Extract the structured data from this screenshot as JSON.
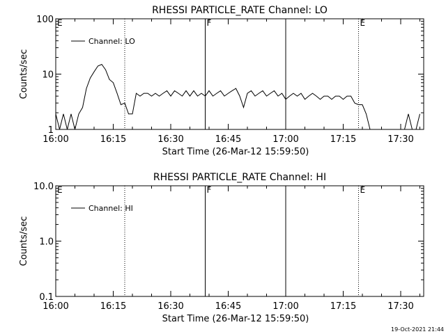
{
  "footer": {
    "timestamp": "19-Oct-2021 21:44"
  },
  "chart_data": [
    {
      "type": "line",
      "title": "RHESSI PARTICLE_RATE Channel: LO",
      "xlabel": "Start Time (26-Mar-12 15:59:50)",
      "ylabel": "Counts/sec",
      "yscale": "log",
      "xlim": [
        "16:00",
        "17:36"
      ],
      "ylim": [
        1,
        100
      ],
      "x_tick_labels": [
        "16:00",
        "16:15",
        "16:30",
        "16:45",
        "17:00",
        "17:15",
        "17:30"
      ],
      "y_tick_labels": [
        "1",
        "10",
        "100"
      ],
      "legend": {
        "label": "Channel: LO",
        "placement": "top-left"
      },
      "markers": [
        {
          "time": "16:00",
          "style": "none",
          "label": "E"
        },
        {
          "time": "16:18",
          "style": "dotted",
          "label": ""
        },
        {
          "time": "16:39",
          "style": "solid",
          "label": "F"
        },
        {
          "time": "17:00",
          "style": "solid",
          "label": ""
        },
        {
          "time": "17:19",
          "style": "dotted",
          "label": "E"
        },
        {
          "time": "17:36",
          "style": "dotted",
          "label": ""
        }
      ],
      "series": [
        {
          "name": "Channel: LO",
          "points": [
            [
              "16:00",
              1.9
            ],
            [
              "16:01",
              1
            ],
            [
              "16:02",
              1.9
            ],
            [
              "16:03",
              1
            ],
            [
              "16:04",
              1.9
            ],
            [
              "16:05",
              1
            ],
            [
              "16:06",
              1.9
            ],
            [
              "16:07",
              2.5
            ],
            [
              "16:08",
              5.5
            ],
            [
              "16:09",
              8.5
            ],
            [
              "16:10",
              11
            ],
            [
              "16:11",
              14
            ],
            [
              "16:12",
              15
            ],
            [
              "16:13",
              12
            ],
            [
              "16:14",
              8
            ],
            [
              "16:15",
              7
            ],
            [
              "16:16",
              4.5
            ],
            [
              "16:17",
              2.8
            ],
            [
              "16:18",
              3
            ],
            [
              "16:19",
              1.9
            ],
            [
              "16:20",
              1.9
            ],
            [
              "16:21",
              4.5
            ],
            [
              "16:22",
              4
            ],
            [
              "16:23",
              4.5
            ],
            [
              "16:24",
              4.5
            ],
            [
              "16:25",
              4
            ],
            [
              "16:26",
              4.5
            ],
            [
              "16:27",
              4
            ],
            [
              "16:28",
              4.5
            ],
            [
              "16:29",
              5
            ],
            [
              "16:30",
              4
            ],
            [
              "16:31",
              5
            ],
            [
              "16:32",
              4.5
            ],
            [
              "16:33",
              4
            ],
            [
              "16:34",
              5
            ],
            [
              "16:35",
              4
            ],
            [
              "16:36",
              5
            ],
            [
              "16:37",
              4
            ],
            [
              "16:38",
              4.5
            ],
            [
              "16:39",
              4
            ],
            [
              "16:40",
              5
            ],
            [
              "16:41",
              4
            ],
            [
              "16:42",
              4.5
            ],
            [
              "16:43",
              5
            ],
            [
              "16:44",
              4
            ],
            [
              "16:45",
              4.5
            ],
            [
              "16:46",
              5
            ],
            [
              "16:47",
              5.5
            ],
            [
              "16:48",
              4
            ],
            [
              "16:49",
              2.5
            ],
            [
              "16:50",
              4.5
            ],
            [
              "16:51",
              5
            ],
            [
              "16:52",
              4
            ],
            [
              "16:53",
              4.5
            ],
            [
              "16:54",
              5
            ],
            [
              "16:55",
              4
            ],
            [
              "16:56",
              4.5
            ],
            [
              "16:57",
              5
            ],
            [
              "16:58",
              4
            ],
            [
              "16:59",
              4.5
            ],
            [
              "17:00",
              3.5
            ],
            [
              "17:01",
              4
            ],
            [
              "17:02",
              4.5
            ],
            [
              "17:03",
              4
            ],
            [
              "17:04",
              4.5
            ],
            [
              "17:05",
              3.5
            ],
            [
              "17:06",
              4
            ],
            [
              "17:07",
              4.5
            ],
            [
              "17:08",
              4
            ],
            [
              "17:09",
              3.5
            ],
            [
              "17:10",
              4
            ],
            [
              "17:11",
              4
            ],
            [
              "17:12",
              3.5
            ],
            [
              "17:13",
              4
            ],
            [
              "17:14",
              4
            ],
            [
              "17:15",
              3.5
            ],
            [
              "17:16",
              4
            ],
            [
              "17:17",
              4
            ],
            [
              "17:18",
              3
            ],
            [
              "17:19",
              2.8
            ],
            [
              "17:20",
              2.8
            ],
            [
              "17:21",
              1.9
            ],
            [
              "17:22",
              1
            ],
            [
              "17:23",
              1
            ],
            [
              "17:31",
              1
            ],
            [
              "17:32",
              1.9
            ],
            [
              "17:33",
              1
            ],
            [
              "17:34",
              1
            ],
            [
              "17:35",
              1.9
            ]
          ]
        }
      ]
    },
    {
      "type": "line",
      "title": "RHESSI PARTICLE_RATE Channel: HI",
      "xlabel": "Start Time (26-Mar-12 15:59:50)",
      "ylabel": "Counts/sec",
      "yscale": "log",
      "xlim": [
        "16:00",
        "17:36"
      ],
      "ylim": [
        0.1,
        10
      ],
      "x_tick_labels": [
        "16:00",
        "16:15",
        "16:30",
        "16:45",
        "17:00",
        "17:15",
        "17:30"
      ],
      "y_tick_labels": [
        "0.1",
        "1.0",
        "10.0"
      ],
      "legend": {
        "label": "Channel: HI",
        "placement": "top-left"
      },
      "markers": [
        {
          "time": "16:00",
          "style": "none",
          "label": "E"
        },
        {
          "time": "16:18",
          "style": "dotted",
          "label": ""
        },
        {
          "time": "16:39",
          "style": "solid",
          "label": "F"
        },
        {
          "time": "17:00",
          "style": "solid",
          "label": ""
        },
        {
          "time": "17:19",
          "style": "dotted",
          "label": "E"
        },
        {
          "time": "17:36",
          "style": "dotted",
          "label": ""
        }
      ],
      "series": [
        {
          "name": "Channel: HI",
          "points": []
        }
      ]
    }
  ]
}
